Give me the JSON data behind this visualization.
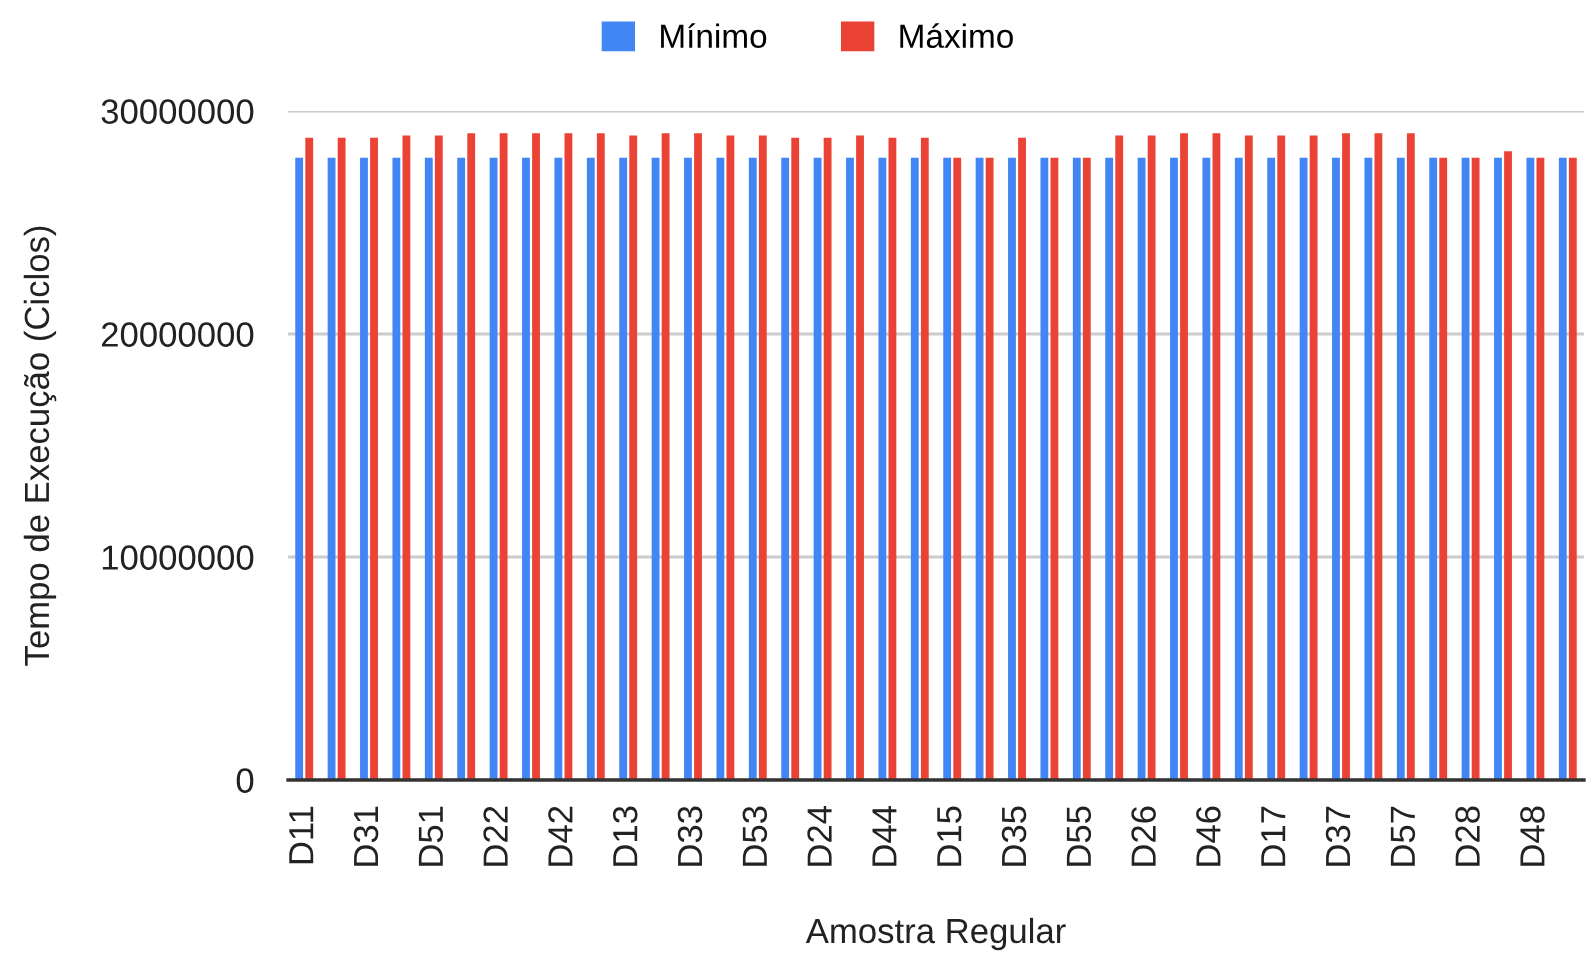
{
  "chart_data": {
    "type": "bar",
    "xlabel": "Amostra Regular",
    "ylabel": "Tempo de Execução (Ciclos)",
    "categories": [
      "D11",
      null,
      "D31",
      null,
      "D51",
      null,
      "D22",
      null,
      "D42",
      null,
      "D13",
      null,
      "D33",
      null,
      "D53",
      null,
      "D24",
      null,
      "D44",
      null,
      "D15",
      null,
      "D35",
      null,
      "D55",
      null,
      "D26",
      null,
      "D46",
      null,
      "D17",
      null,
      "D37",
      null,
      "D57",
      null,
      "D28",
      null,
      "D48",
      null
    ],
    "series": [
      {
        "name": "Mínimo",
        "color": "#4285f4",
        "values": [
          27900000,
          27900000,
          27900000,
          27900000,
          27900000,
          27900000,
          27900000,
          27900000,
          27900000,
          27900000,
          27900000,
          27900000,
          27900000,
          27900000,
          27900000,
          27900000,
          27900000,
          27900000,
          27900000,
          27900000,
          27900000,
          27900000,
          27900000,
          27900000,
          27900000,
          27900000,
          27900000,
          27900000,
          27900000,
          27900000,
          27900000,
          27900000,
          27900000,
          27900000,
          27900000,
          27900000,
          27900000,
          27900000,
          27900000,
          27900000
        ]
      },
      {
        "name": "Máximo",
        "color": "#ea4335",
        "values": [
          28800000,
          28800000,
          28800000,
          28900000,
          28900000,
          29000000,
          29000000,
          29000000,
          29000000,
          29000000,
          28900000,
          29000000,
          29000000,
          28900000,
          28900000,
          28800000,
          28800000,
          28900000,
          28800000,
          28800000,
          27900000,
          27900000,
          28800000,
          27900000,
          27900000,
          28900000,
          28900000,
          29000000,
          29000000,
          28900000,
          28900000,
          28900000,
          29000000,
          29000000,
          29000000,
          27900000,
          27900000,
          28200000,
          27900000,
          27900000
        ]
      }
    ],
    "ylim": [
      0,
      30000000
    ],
    "yticks": [
      0,
      10000000,
      20000000,
      30000000
    ],
    "grid": "y",
    "legend": "top"
  }
}
